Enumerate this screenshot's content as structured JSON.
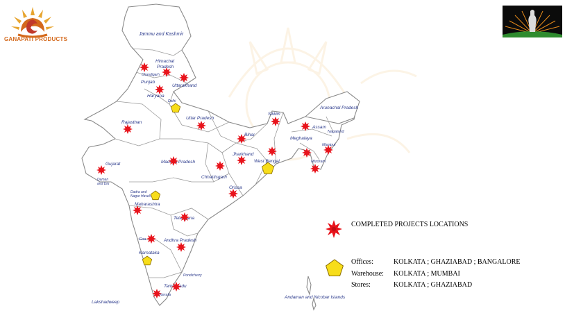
{
  "brand": {
    "company_name": "GANAPATI PRODUCTS",
    "brand_color": "#d4691c",
    "logo_icon": "sun-flame-emblem-icon",
    "right_logo_icon": "sunrise-figure-emblem-icon"
  },
  "map": {
    "country": "India",
    "outline_color": "#8a8a8a",
    "label_color": "#2b3a8c",
    "region_labels": [
      "Jammu and Kashmir",
      "Himachal Pradesh",
      "Chandigarh",
      "Punjab",
      "Uttarakhand",
      "Haryana",
      "Delhi",
      "Uttar Pradesh",
      "Rajasthan",
      "Sikkim",
      "Arunachal Pradesh",
      "Assam",
      "Nagaland",
      "Meghalaya",
      "Bihar",
      "Manipur",
      "Jharkhand",
      "West Bengal",
      "Mizoram",
      "Gujarat",
      "Madhya Pradesh",
      "Chhattisgarh",
      "Daman and Diu",
      "Orissa",
      "Dadra and Nagar Haveli",
      "Maharashtra",
      "Telangana",
      "Goa",
      "Andhra Pradesh",
      "Karnataka",
      "Pondicherry",
      "Tamil Nadu",
      "Kerala",
      "Lakshadweep",
      "Andaman and Nicobar Islands"
    ]
  },
  "markers": {
    "project_icon": "red-star-burst-icon",
    "project_color": "#e8131b",
    "facility_icon": "yellow-pentagon-icon",
    "facility_color": "#f7dd1a",
    "project_count": 30,
    "facility_count": 5
  },
  "legend": {
    "completed_title": "COMPLETED PROJECTS LOCATIONS",
    "rows": [
      {
        "label": "Offices:",
        "value": "KOLKATA ; GHAZIABAD ; BANGALORE"
      },
      {
        "label": "Warehouse:",
        "value": "KOLKATA ; MUMBAI"
      },
      {
        "label": "Stores:",
        "value": "KOLKATA ; GHAZIABAD"
      }
    ]
  }
}
